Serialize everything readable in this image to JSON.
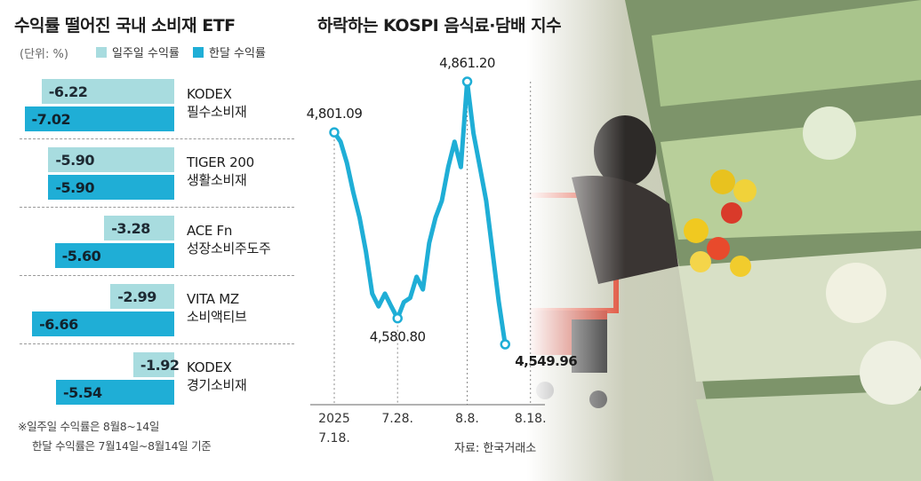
{
  "left": {
    "title": "수익률 떨어진 국내 소비재 ETF",
    "unit": "(단위: %)",
    "legend": {
      "weekly": "일주일 수익률",
      "monthly": "한달 수익률"
    },
    "colors": {
      "weekly": "#a8dcdf",
      "monthly": "#1faed6"
    },
    "footnote": [
      "※일주일 수익률은 8월8~14일",
      "한달 수익률은 7월14일~8월14일 기준"
    ]
  },
  "right": {
    "title": "하락하는 KOSPI 음식료·담배 지수",
    "source": "자료: 한국거래소",
    "line_color": "#1faed6"
  },
  "chart_data": [
    {
      "type": "bar",
      "title": "수익률 떨어진 국내 소비재 ETF",
      "unit": "(단위: %)",
      "categories": [
        "KODEX 필수소비재",
        "TIGER 200 생활소비재",
        "ACE Fn 성장소비주도주",
        "VITA MZ 소비액티브",
        "KODEX 경기소비재"
      ],
      "category_lines": [
        [
          "KODEX",
          "필수소비재"
        ],
        [
          "TIGER 200",
          "생활소비재"
        ],
        [
          "ACE Fn",
          "성장소비주도주"
        ],
        [
          "VITA MZ",
          "소비액티브"
        ],
        [
          "KODEX",
          "경기소비재"
        ]
      ],
      "series": [
        {
          "name": "일주일 수익률",
          "values": [
            -6.22,
            -5.9,
            -3.28,
            -2.99,
            -1.92
          ],
          "labels": [
            "-6.22",
            "-5.90",
            "-3.28",
            "-2.99",
            "-1.92"
          ]
        },
        {
          "name": "한달 수익률",
          "values": [
            -7.02,
            -5.9,
            -5.6,
            -6.66,
            -5.54
          ],
          "labels": [
            "-7.02",
            "-5.90",
            "-5.60",
            "-6.66",
            "-5.54"
          ]
        }
      ]
    },
    {
      "type": "line",
      "title": "하락하는 KOSPI 음식료·담배 지수",
      "x_ticks": [
        "2025\n7.18.",
        "7.28.",
        "8.8.",
        "8.18."
      ],
      "tick_dates": [
        "2025-07-18",
        "2025-07-28",
        "2025-08-08",
        "2025-08-18"
      ],
      "x": [
        "2025-07-18",
        "2025-07-19",
        "2025-07-20",
        "2025-07-21",
        "2025-07-22",
        "2025-07-23",
        "2025-07-24",
        "2025-07-25",
        "2025-07-26",
        "2025-07-27",
        "2025-07-28",
        "2025-07-29",
        "2025-07-30",
        "2025-07-31",
        "2025-08-01",
        "2025-08-02",
        "2025-08-03",
        "2025-08-04",
        "2025-08-05",
        "2025-08-06",
        "2025-08-07",
        "2025-08-08",
        "2025-08-09",
        "2025-08-10",
        "2025-08-11",
        "2025-08-12",
        "2025-08-13",
        "2025-08-14"
      ],
      "y": [
        4801.09,
        4790,
        4765,
        4730,
        4700,
        4660,
        4610,
        4595,
        4610,
        4595,
        4580.8,
        4600,
        4605,
        4630,
        4615,
        4670,
        4700,
        4720,
        4760,
        4790,
        4760,
        4861.2,
        4800,
        4760,
        4720,
        4660,
        4600,
        4549.96
      ],
      "annotations": [
        {
          "x": "2025-07-18",
          "label": "4,801.09"
        },
        {
          "x": "2025-07-28",
          "label": "4,580.80"
        },
        {
          "x": "2025-08-08",
          "label": "4,861.20"
        },
        {
          "x": "2025-08-14",
          "label": "4,549.96"
        }
      ],
      "source": "자료: 한국거래소"
    }
  ]
}
